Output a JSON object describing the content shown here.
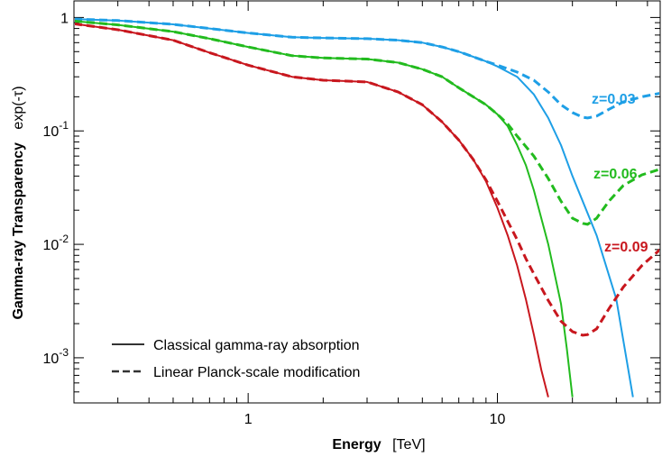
{
  "chart_data": {
    "type": "line",
    "title": "",
    "xlabel": "Energy",
    "xunit": "[TeV]",
    "ylabel": "Gamma-ray Transparency",
    "ylabel_expr": "exp(-τ)",
    "xscale": "log",
    "yscale": "log",
    "xlim": [
      0.2,
      45
    ],
    "ylim": [
      0.0004,
      1.4
    ],
    "x_ticks": [
      {
        "value": 1,
        "label": "1"
      },
      {
        "value": 10,
        "label": "10"
      }
    ],
    "y_ticks": [
      {
        "value": 1,
        "base": "1",
        "exp": ""
      },
      {
        "value": 0.1,
        "base": "10",
        "exp": "-1"
      },
      {
        "value": 0.01,
        "base": "10",
        "exp": "-2"
      },
      {
        "value": 0.001,
        "base": "10",
        "exp": "-3"
      }
    ],
    "grid": false,
    "legend": {
      "placement": "bottom-left",
      "entries": [
        {
          "label": "Classical gamma-ray absorption",
          "style": "solid"
        },
        {
          "label": "Linear Planck-scale modification",
          "style": "dashed"
        }
      ]
    },
    "series": [
      {
        "name": "z=0.03",
        "label": "z=0.03",
        "color": "#1e9fe6",
        "style": "solid",
        "x": [
          0.2,
          0.3,
          0.5,
          0.7,
          1,
          1.5,
          2,
          3,
          4,
          5,
          6,
          7,
          8,
          9,
          10,
          12,
          14,
          16,
          18,
          20,
          25,
          30,
          35
        ],
        "y": [
          0.97,
          0.94,
          0.87,
          0.8,
          0.73,
          0.67,
          0.66,
          0.65,
          0.63,
          0.6,
          0.55,
          0.5,
          0.45,
          0.41,
          0.37,
          0.3,
          0.21,
          0.13,
          0.075,
          0.04,
          0.012,
          0.0033,
          0.00045
        ]
      },
      {
        "name": "z=0.03",
        "color": "#1e9fe6",
        "style": "dashed",
        "x": [
          0.2,
          0.3,
          0.5,
          0.7,
          1,
          1.5,
          2,
          3,
          4,
          5,
          6,
          7,
          8,
          9,
          10,
          12,
          14,
          16,
          18,
          20,
          22,
          23,
          25,
          28,
          32,
          38,
          45
        ],
        "y": [
          0.97,
          0.94,
          0.87,
          0.8,
          0.73,
          0.67,
          0.66,
          0.65,
          0.63,
          0.6,
          0.55,
          0.5,
          0.45,
          0.41,
          0.38,
          0.33,
          0.28,
          0.22,
          0.17,
          0.145,
          0.132,
          0.13,
          0.135,
          0.155,
          0.18,
          0.2,
          0.215
        ]
      },
      {
        "name": "z=0.06",
        "label": "z=0.06",
        "color": "#22bb1e",
        "style": "solid",
        "x": [
          0.2,
          0.3,
          0.5,
          0.7,
          1,
          1.5,
          2,
          3,
          4,
          5,
          6,
          7,
          8,
          9,
          10,
          11,
          12,
          13,
          14,
          16,
          18,
          19,
          20
        ],
        "y": [
          0.93,
          0.86,
          0.75,
          0.65,
          0.55,
          0.46,
          0.44,
          0.43,
          0.4,
          0.35,
          0.3,
          0.24,
          0.2,
          0.17,
          0.14,
          0.11,
          0.075,
          0.05,
          0.03,
          0.01,
          0.003,
          0.0012,
          0.00045
        ]
      },
      {
        "name": "z=0.06",
        "color": "#22bb1e",
        "style": "dashed",
        "x": [
          0.2,
          0.3,
          0.5,
          0.7,
          1,
          1.5,
          2,
          3,
          4,
          5,
          6,
          7,
          8,
          9,
          10,
          11,
          12,
          14,
          16,
          18,
          20,
          22,
          23,
          25,
          28,
          32,
          38,
          45
        ],
        "y": [
          0.93,
          0.86,
          0.75,
          0.65,
          0.55,
          0.46,
          0.44,
          0.43,
          0.4,
          0.35,
          0.3,
          0.24,
          0.2,
          0.17,
          0.14,
          0.115,
          0.09,
          0.06,
          0.038,
          0.024,
          0.017,
          0.0153,
          0.015,
          0.017,
          0.024,
          0.033,
          0.041,
          0.046
        ]
      },
      {
        "name": "z=0.09",
        "label": "z=0.09",
        "color": "#c8171e",
        "style": "solid",
        "x": [
          0.2,
          0.3,
          0.5,
          0.7,
          1,
          1.5,
          2,
          3,
          4,
          5,
          6,
          7,
          8,
          9,
          10,
          11,
          12,
          13,
          14,
          15,
          16
        ],
        "y": [
          0.88,
          0.78,
          0.63,
          0.49,
          0.38,
          0.3,
          0.28,
          0.27,
          0.22,
          0.17,
          0.12,
          0.083,
          0.056,
          0.036,
          0.021,
          0.012,
          0.0065,
          0.0033,
          0.0016,
          0.00078,
          0.00045
        ]
      },
      {
        "name": "z=0.09",
        "color": "#c8171e",
        "style": "dashed",
        "x": [
          0.2,
          0.3,
          0.5,
          0.7,
          1,
          1.5,
          2,
          3,
          4,
          5,
          6,
          7,
          8,
          9,
          10,
          11,
          12,
          13,
          14,
          16,
          18,
          20,
          22,
          23,
          25,
          28,
          32,
          38,
          45
        ],
        "y": [
          0.88,
          0.78,
          0.63,
          0.49,
          0.38,
          0.3,
          0.28,
          0.27,
          0.22,
          0.17,
          0.12,
          0.083,
          0.056,
          0.037,
          0.024,
          0.016,
          0.011,
          0.0075,
          0.0055,
          0.0032,
          0.0021,
          0.0017,
          0.00158,
          0.0016,
          0.0018,
          0.0027,
          0.0042,
          0.0065,
          0.009
        ]
      }
    ],
    "annotations": [
      {
        "text": "z=0.03",
        "color": "#1e9fe6"
      },
      {
        "text": "z=0.06",
        "color": "#22bb1e"
      },
      {
        "text": "z=0.09",
        "color": "#c8171e"
      }
    ]
  }
}
